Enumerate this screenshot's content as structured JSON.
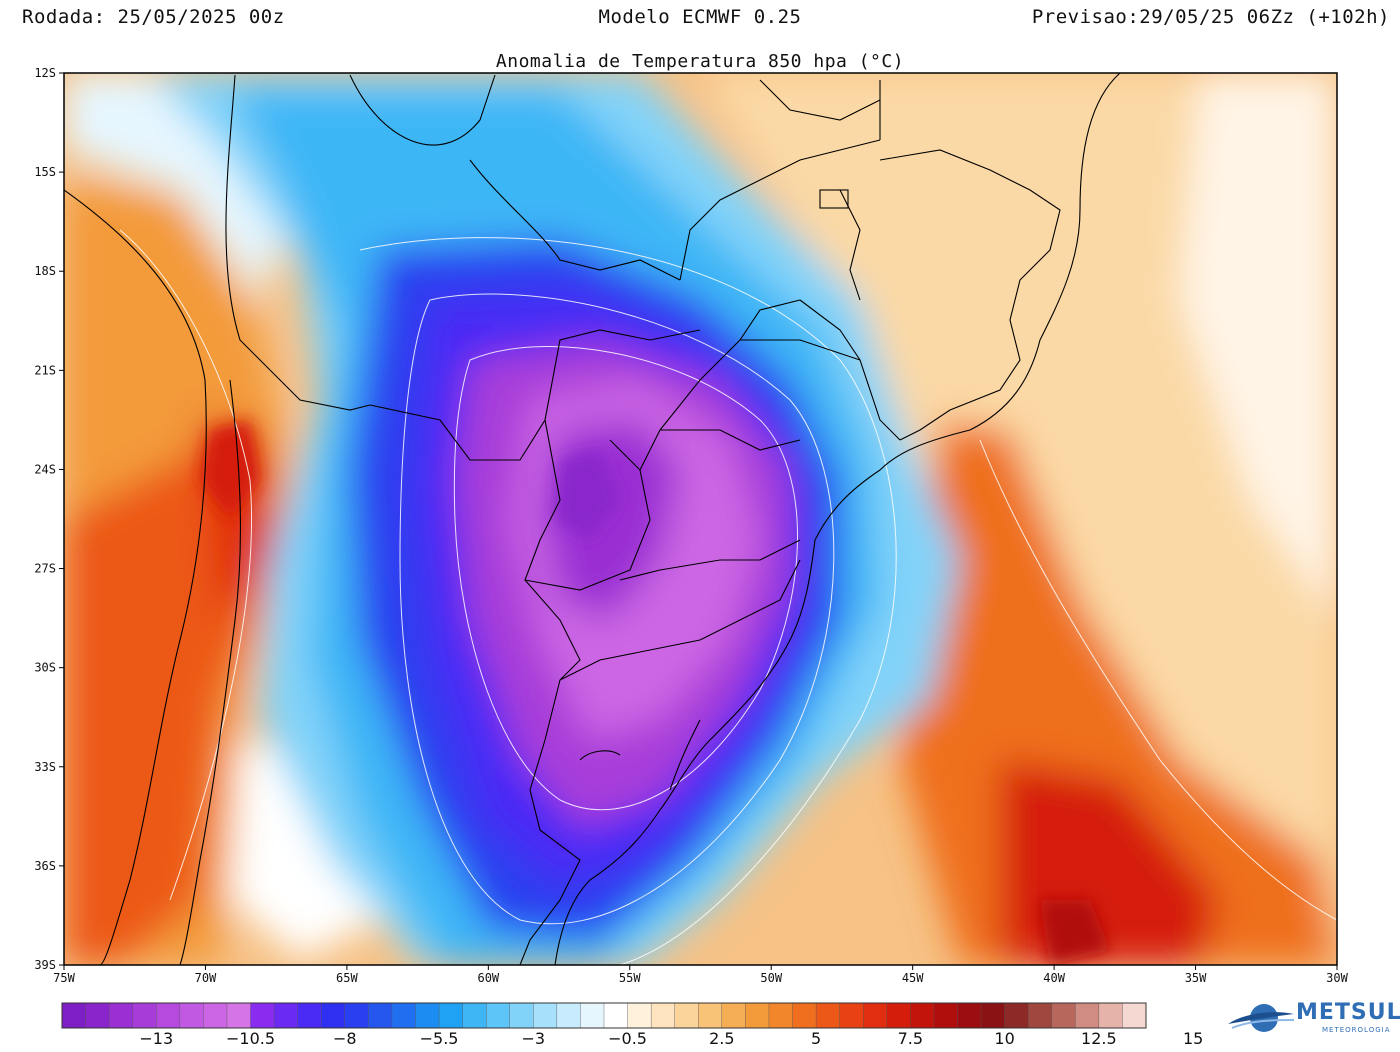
{
  "header": {
    "run": "Rodada: 25/05/2025 00z",
    "model": "Modelo ECMWF 0.25",
    "forecast": "Previsao:29/05/25 06Zz (+102h)"
  },
  "map": {
    "title": "Anomalia de Temperatura 850 hpa (°C)",
    "lat_labels": [
      "12S",
      "15S",
      "18S",
      "21S",
      "24S",
      "27S",
      "30S",
      "33S",
      "36S",
      "39S"
    ],
    "lon_labels": [
      "75W",
      "70W",
      "65W",
      "60W",
      "55W",
      "50W",
      "45W",
      "40W",
      "35W",
      "30W"
    ],
    "extent": {
      "lon_min": -75,
      "lon_max": -30,
      "lat_min": -39,
      "lat_max": -12
    }
  },
  "colorbar": {
    "labels": [
      "−13",
      "−10.5",
      "−8",
      "−5.5",
      "−3",
      "−0.5",
      "2.5",
      "5",
      "7.5",
      "10",
      "12.5",
      "15"
    ],
    "colors": [
      "#7d1fc4",
      "#8a25cc",
      "#9a2fd3",
      "#a83cd9",
      "#b64ade",
      "#c259e2",
      "#cc66e4",
      "#d574e6",
      "#8a2bf0",
      "#6a2af3",
      "#4a2af5",
      "#2f2ff2",
      "#2a3ff0",
      "#2557ee",
      "#1f6ff0",
      "#1c8cf2",
      "#1fa2f4",
      "#3eb6f6",
      "#5ec5f8",
      "#82d3f9",
      "#a6e0fb",
      "#c8ecfd",
      "#e6f6fe",
      "#ffffff",
      "#fff1dc",
      "#fde4bf",
      "#fbd49b",
      "#f8c277",
      "#f5ae55",
      "#f39a3a",
      "#f1862a",
      "#ef6f1e",
      "#ec5818",
      "#e84214",
      "#e12d10",
      "#d51d0c",
      "#c3140c",
      "#b00e0d",
      "#9b0d10",
      "#8a1214",
      "#8c2a28",
      "#a0483f",
      "#b8675c",
      "#d08c82",
      "#e6b3aa",
      "#f5d8d2"
    ]
  },
  "logo": {
    "name": "METSUL",
    "sub": "METEOROLOGIA"
  }
}
